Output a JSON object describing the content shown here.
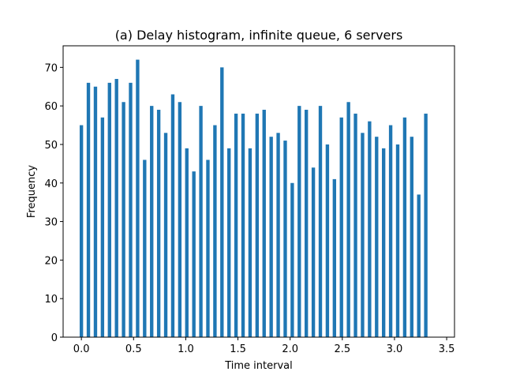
{
  "chart_data": {
    "type": "bar",
    "title": "(a) Delay histogram, infinite queue, 6 servers",
    "xlabel": "Time interval",
    "ylabel": "Frequency",
    "xlim": [
      -0.175,
      3.575
    ],
    "ylim": [
      0,
      75.6
    ],
    "xticks": [
      0.0,
      0.5,
      1.0,
      1.5,
      2.0,
      2.5,
      3.0,
      3.5
    ],
    "xtick_labels": [
      "0.0",
      "0.5",
      "1.0",
      "1.5",
      "2.0",
      "2.5",
      "3.0",
      "3.5"
    ],
    "yticks": [
      0,
      10,
      20,
      30,
      40,
      50,
      60,
      70
    ],
    "ytick_labels": [
      "0",
      "10",
      "20",
      "30",
      "40",
      "50",
      "60",
      "70"
    ],
    "bar_width": 0.033,
    "bar_color": "#1f77b4",
    "grid": false,
    "x": [
      0.0,
      0.0673,
      0.1347,
      0.202,
      0.2694,
      0.3367,
      0.4041,
      0.4714,
      0.5388,
      0.6061,
      0.6735,
      0.7408,
      0.8082,
      0.8755,
      0.9429,
      1.0102,
      1.0776,
      1.1449,
      1.2122,
      1.2796,
      1.3469,
      1.4143,
      1.4816,
      1.549,
      1.6163,
      1.6837,
      1.751,
      1.8184,
      1.8857,
      1.9531,
      2.0204,
      2.0878,
      2.1551,
      2.2224,
      2.2898,
      2.3571,
      2.4245,
      2.4918,
      2.5592,
      2.6265,
      2.6939,
      2.7612,
      2.8286,
      2.8959,
      2.9633,
      3.0306,
      3.098,
      3.1653,
      3.2327,
      3.3
    ],
    "values": [
      55,
      66,
      65,
      57,
      66,
      67,
      61,
      66,
      72,
      46,
      60,
      59,
      53,
      63,
      61,
      49,
      43,
      60,
      46,
      55,
      70,
      49,
      58,
      58,
      49,
      58,
      59,
      52,
      53,
      51,
      40,
      60,
      59,
      44,
      60,
      50,
      41,
      57,
      61,
      58,
      53,
      56,
      52,
      49,
      55,
      50,
      57,
      52,
      37,
      58
    ]
  }
}
